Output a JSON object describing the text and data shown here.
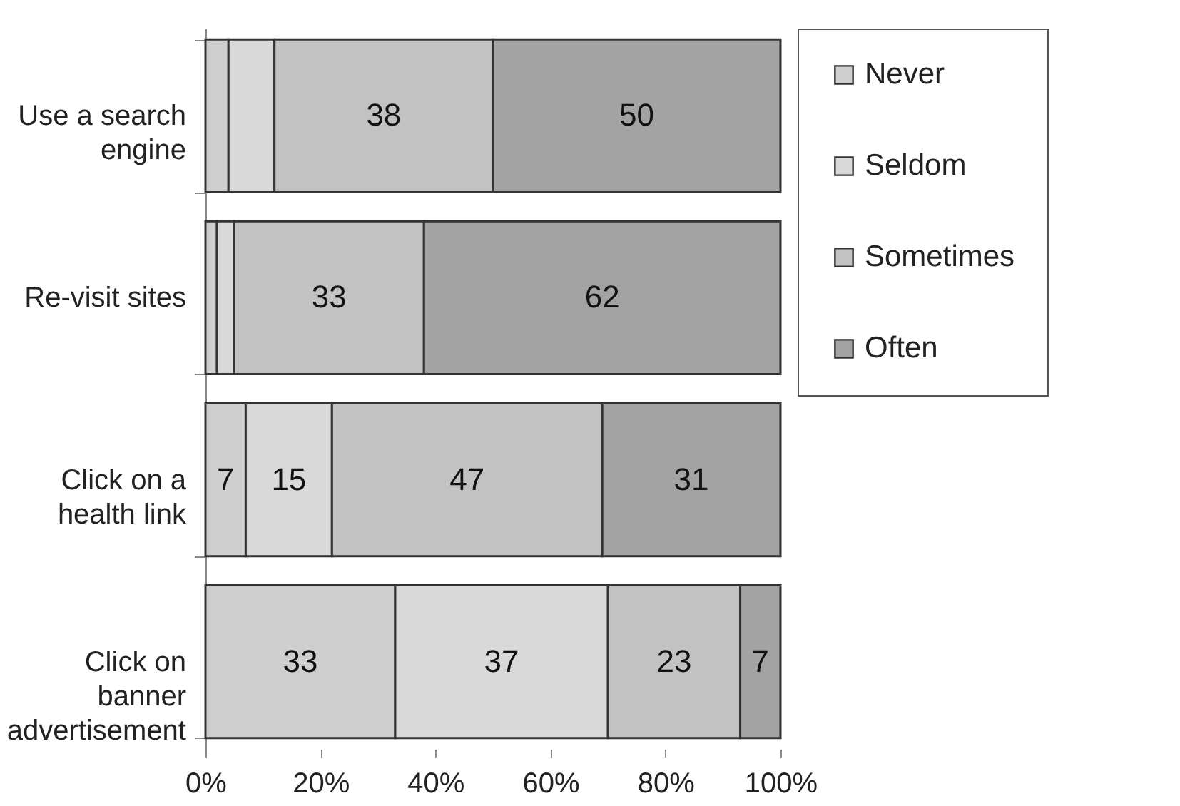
{
  "chart_data": {
    "type": "bar",
    "orientation": "horizontal",
    "stacked": true,
    "categories": [
      "Use a search engine",
      "Re-visit sites",
      "Click on a health link",
      "Click on banner advertisement"
    ],
    "series": [
      {
        "name": "Never",
        "color": "#cfcfcf",
        "values": [
          4,
          2,
          7,
          33
        ],
        "value_labels": [
          null,
          null,
          "7",
          "33"
        ]
      },
      {
        "name": "Seldom",
        "color": "#d9d9d9",
        "values": [
          8,
          3,
          15,
          37
        ],
        "value_labels": [
          null,
          null,
          "15",
          "37"
        ]
      },
      {
        "name": "Sometimes",
        "color": "#c2c2c2",
        "values": [
          38,
          33,
          47,
          23
        ],
        "value_labels": [
          "38",
          "33",
          "47",
          "23"
        ]
      },
      {
        "name": "Often",
        "color": "#a3a3a3",
        "values": [
          50,
          62,
          31,
          7
        ],
        "value_labels": [
          "50",
          "62",
          "31",
          "7"
        ]
      }
    ],
    "xlim": [
      0,
      100
    ],
    "xticks": [
      {
        "value": 0,
        "label": "0%"
      },
      {
        "value": 20,
        "label": "20%"
      },
      {
        "value": 40,
        "label": "40%"
      },
      {
        "value": 60,
        "label": "60%"
      },
      {
        "value": 80,
        "label": "80%"
      },
      {
        "value": 100,
        "label": "100%"
      }
    ],
    "legend": "right",
    "grid": false
  }
}
